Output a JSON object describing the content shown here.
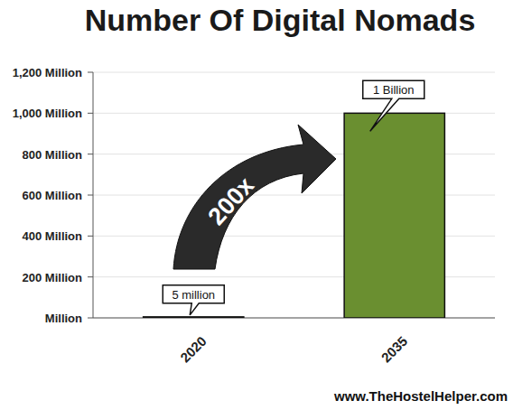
{
  "chart_data": {
    "type": "bar",
    "title": "Number Of Digital Nomads",
    "categories": [
      "2020",
      "2035"
    ],
    "values": [
      5,
      1000
    ],
    "color": "#6a8f30",
    "data_labels": true,
    "value_labels": [
      "5 million",
      "1 Billion"
    ],
    "ylim": [
      0,
      1200
    ],
    "yticks": [
      {
        "value": 0,
        "label": "Million"
      },
      {
        "value": 200,
        "label": "200 Million"
      },
      {
        "value": 400,
        "label": "400 Million"
      },
      {
        "value": 600,
        "label": "600 Million"
      },
      {
        "value": 800,
        "label": "800 Million"
      },
      {
        "value": 1000,
        "label": "1,000 Million"
      },
      {
        "value": 1200,
        "label": "1,200 Million"
      }
    ],
    "grid": true,
    "annotations": [
      "200x"
    ],
    "source": "www.TheHostelHelper.com"
  }
}
